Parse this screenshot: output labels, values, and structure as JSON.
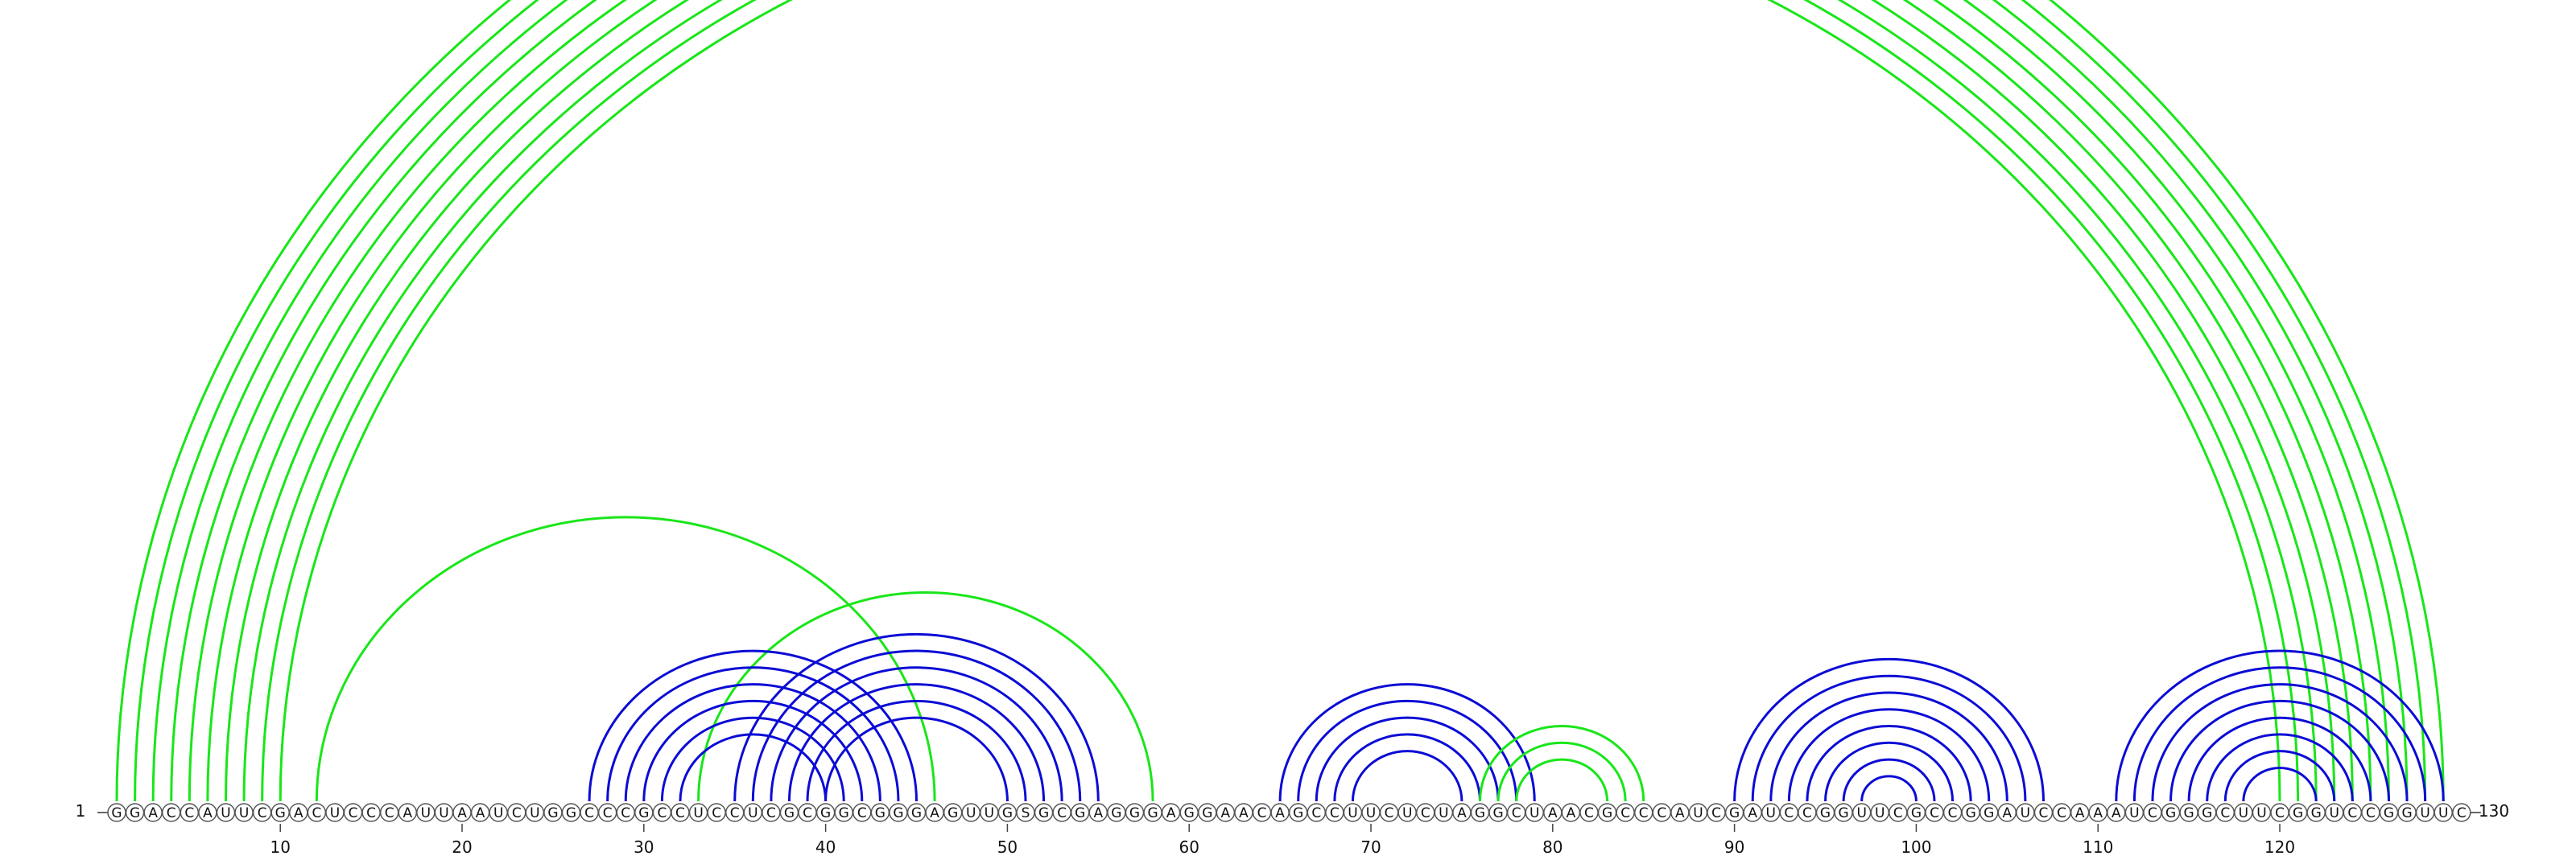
{
  "diagram": {
    "type": "rna-arc-diagram",
    "sequence": "GGACCAUUCGACUCCCAUUAAUCUGGCCCGCCUCCUCGCGGCGGGAGUUGSGCGAGGGAGGAACAGCCUUCUCUAGGCUAACGCCCAUCGAUCCGGUUCGCCGGAUCCAAAUCGGGCUUCGGUCCGGUUC",
    "start_label": "1",
    "end_label": "130",
    "tick_labels": [
      "10",
      "20",
      "30",
      "40",
      "50",
      "60",
      "70",
      "80",
      "90",
      "100",
      "110",
      "120"
    ],
    "tick_positions": [
      10,
      20,
      30,
      40,
      50,
      60,
      70,
      80,
      90,
      100,
      110,
      120
    ],
    "colors": {
      "pair_blue": "#0b0bd6",
      "pair_green": "#19e619",
      "nucleotide_fill": "#ffffff",
      "nucleotide_stroke": "#555555",
      "text": "#111111"
    },
    "pair_groups": [
      {
        "name": "long-outer-helix",
        "color": "green",
        "pairs": [
          [
            1,
            129
          ],
          [
            2,
            128
          ],
          [
            3,
            127
          ],
          [
            4,
            126
          ],
          [
            5,
            125
          ],
          [
            6,
            124
          ],
          [
            7,
            123
          ],
          [
            8,
            122
          ],
          [
            9,
            121
          ],
          [
            10,
            120
          ]
        ]
      },
      {
        "name": "left-green-arc",
        "color": "green",
        "pairs": [
          [
            12,
            46
          ]
        ]
      },
      {
        "name": "mid-green-arc",
        "color": "green",
        "pairs": [
          [
            33,
            58
          ]
        ]
      },
      {
        "name": "left-blue-helix-1",
        "color": "blue",
        "pairs": [
          [
            27,
            45
          ],
          [
            28,
            44
          ],
          [
            29,
            43
          ],
          [
            30,
            42
          ],
          [
            31,
            41
          ],
          [
            32,
            40
          ]
        ]
      },
      {
        "name": "left-blue-helix-2",
        "color": "blue",
        "pairs": [
          [
            35,
            55
          ],
          [
            36,
            54
          ],
          [
            37,
            53
          ],
          [
            38,
            52
          ],
          [
            39,
            51
          ],
          [
            40,
            50
          ]
        ]
      },
      {
        "name": "hairpin-70",
        "color": "blue",
        "pairs": [
          [
            65,
            79
          ],
          [
            66,
            78
          ],
          [
            67,
            77
          ],
          [
            68,
            76
          ],
          [
            69,
            75
          ]
        ]
      },
      {
        "name": "green-knot-80",
        "color": "green",
        "pairs": [
          [
            76,
            85
          ],
          [
            77,
            84
          ],
          [
            78,
            83
          ]
        ]
      },
      {
        "name": "hairpin-98",
        "color": "blue",
        "pairs": [
          [
            90,
            107
          ],
          [
            91,
            106
          ],
          [
            92,
            105
          ],
          [
            93,
            104
          ],
          [
            94,
            103
          ],
          [
            95,
            102
          ],
          [
            96,
            101
          ],
          [
            97,
            100
          ]
        ]
      },
      {
        "name": "hairpin-120",
        "color": "blue",
        "pairs": [
          [
            111,
            129
          ],
          [
            112,
            128
          ],
          [
            113,
            127
          ],
          [
            114,
            126
          ],
          [
            115,
            125
          ],
          [
            116,
            124
          ],
          [
            117,
            123
          ],
          [
            118,
            122
          ]
        ]
      }
    ]
  }
}
